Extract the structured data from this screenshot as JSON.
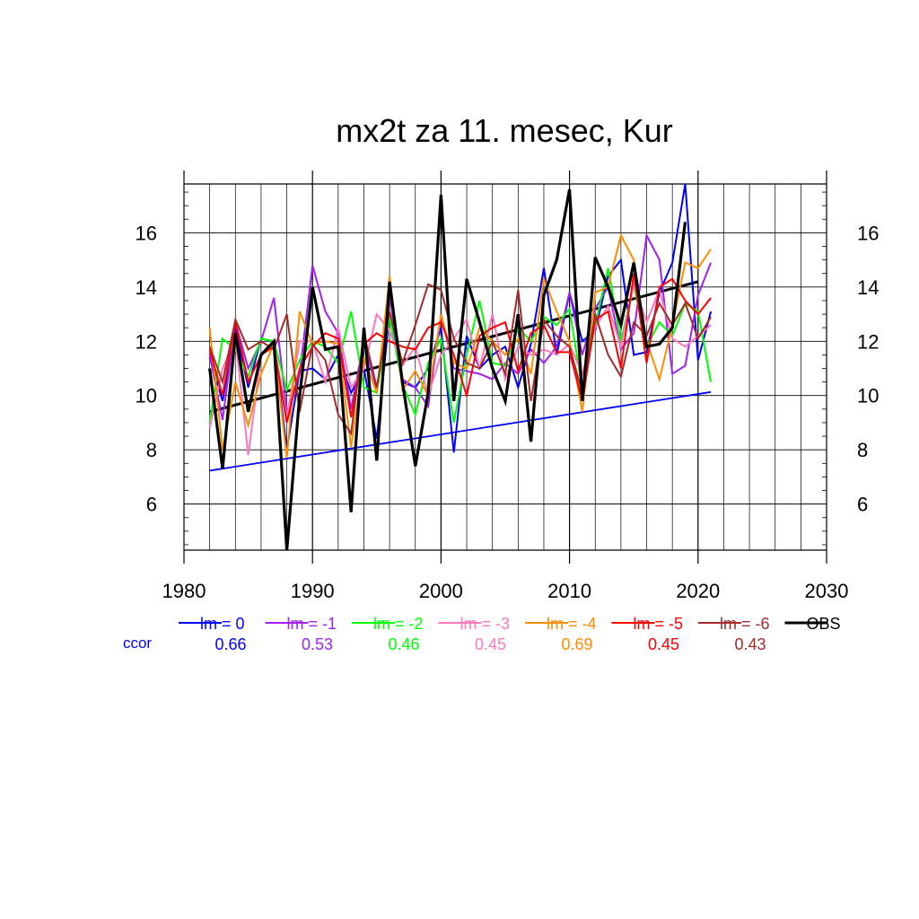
{
  "chart_data": {
    "type": "line",
    "title": "mx2t za 11. mesec, Kur",
    "xlabel": "",
    "ylabel": "",
    "xlim": [
      1980,
      2030
    ],
    "ylim": [
      4.3,
      17.8
    ],
    "x_ticks": [
      1980,
      1990,
      2000,
      2010,
      2020,
      2030
    ],
    "y_ticks": [
      6,
      8,
      10,
      12,
      14,
      16
    ],
    "grid": true,
    "legend_placement": "bottom",
    "ccor_label": "ccor",
    "x": [
      1982,
      1983,
      1984,
      1985,
      1986,
      1987,
      1988,
      1989,
      1990,
      1991,
      1992,
      1993,
      1994,
      1995,
      1996,
      1997,
      1998,
      1999,
      2000,
      2001,
      2002,
      2003,
      2004,
      2005,
      2006,
      2007,
      2008,
      2009,
      2010,
      2011,
      2012,
      2013,
      2014,
      2015,
      2016,
      2017,
      2018,
      2019,
      2020,
      2021
    ],
    "series": [
      {
        "name": "lm = 0",
        "color": "#0000ff",
        "ccor": "0.66",
        "values": [
          11.4,
          9.8,
          12.5,
          10.3,
          12.1,
          12.0,
          8.0,
          10.9,
          11.0,
          10.6,
          11.5,
          10.1,
          11.0,
          8.4,
          13.0,
          10.5,
          10.3,
          11.0,
          12.5,
          7.9,
          12.2,
          11.0,
          11.5,
          11.8,
          10.3,
          11.9,
          14.7,
          11.5,
          13.8,
          12.0,
          12.4,
          14.4,
          15.0,
          11.5,
          11.6,
          13.8,
          14.9,
          17.8,
          11.3,
          13.1
        ]
      },
      {
        "name": "lm = -1",
        "color": "#a020f0",
        "ccor": "0.53",
        "values": [
          11.5,
          9.1,
          12.7,
          11.0,
          12.0,
          13.6,
          9.4,
          10.8,
          14.8,
          13.1,
          12.3,
          9.5,
          12.0,
          10.2,
          13.7,
          10.6,
          10.3,
          9.6,
          13.0,
          11.0,
          10.9,
          10.8,
          10.6,
          11.2,
          10.8,
          11.7,
          11.2,
          11.8,
          13.8,
          11.5,
          13.2,
          14.0,
          11.7,
          12.3,
          15.9,
          15.0,
          10.8,
          11.1,
          13.7,
          14.9
        ]
      },
      {
        "name": "lm = -2",
        "color": "#00ff00",
        "ccor": "0.46",
        "values": [
          9.0,
          12.1,
          11.7,
          10.7,
          12.1,
          12.0,
          10.2,
          11.3,
          12.0,
          11.8,
          11.2,
          13.1,
          10.3,
          10.1,
          12.9,
          10.4,
          9.3,
          11.2,
          12.1,
          9.0,
          11.5,
          13.5,
          11.2,
          11.1,
          12.5,
          12.0,
          12.9,
          12.6,
          13.2,
          10.2,
          12.6,
          14.7,
          12.0,
          14.1,
          11.8,
          12.7,
          12.2,
          13.4,
          13.1,
          10.5
        ]
      },
      {
        "name": "lm = -3",
        "color": "#ff77bb",
        "ccor": "0.45",
        "values": [
          8.8,
          11.0,
          12.1,
          7.8,
          11.5,
          11.9,
          9.2,
          12.0,
          12.0,
          10.5,
          12.5,
          10.3,
          11.0,
          13.0,
          12.4,
          11.1,
          11.8,
          10.0,
          11.5,
          12.1,
          12.8,
          11.0,
          13.0,
          10.6,
          11.8,
          11.5,
          11.7,
          11.5,
          11.9,
          10.8,
          12.5,
          13.3,
          11.8,
          14.1,
          12.7,
          13.9,
          12.1,
          11.8,
          12.2,
          12.6
        ]
      },
      {
        "name": "lm = -4",
        "color": "#ff8c00",
        "ccor": "0.69",
        "values": [
          12.5,
          8.0,
          10.5,
          8.9,
          10.8,
          11.9,
          7.7,
          13.1,
          11.9,
          12.0,
          11.9,
          8.1,
          11.4,
          10.1,
          14.4,
          10.2,
          10.9,
          10.0,
          13.0,
          11.2,
          11.0,
          12.5,
          12.0,
          11.5,
          12.1,
          10.8,
          14.3,
          13.1,
          12.0,
          9.4,
          13.8,
          14.0,
          15.9,
          15.0,
          12.0,
          10.6,
          12.6,
          14.9,
          14.7,
          15.4
        ]
      },
      {
        "name": "lm = -5",
        "color": "#ff0000",
        "ccor": "0.45",
        "values": [
          11.7,
          10.0,
          12.7,
          10.5,
          11.5,
          11.8,
          9.0,
          11.0,
          11.8,
          12.3,
          12.1,
          9.2,
          11.9,
          12.3,
          12.0,
          11.8,
          11.7,
          12.5,
          12.7,
          11.5,
          10.0,
          12.2,
          12.5,
          12.7,
          10.9,
          12.3,
          12.6,
          11.6,
          11.6,
          9.8,
          12.8,
          13.1,
          11.0,
          14.5,
          11.2,
          14.0,
          14.3,
          13.5,
          13.0,
          13.6
        ]
      },
      {
        "name": "lm = -6",
        "color": "#a52a2a",
        "ccor": "0.43",
        "values": [
          11.8,
          10.5,
          12.8,
          11.7,
          12.0,
          11.7,
          13.0,
          9.4,
          11.9,
          11.3,
          9.3,
          8.6,
          12.3,
          10.3,
          13.1,
          11.2,
          12.6,
          14.1,
          13.9,
          12.1,
          11.2,
          11.0,
          12.0,
          10.8,
          13.9,
          9.8,
          12.8,
          12.2,
          11.8,
          10.1,
          13.0,
          11.5,
          10.7,
          12.7,
          12.2,
          13.4,
          12.6,
          13.4,
          12.1,
          12.9
        ]
      },
      {
        "name": "OBS",
        "color": "#000000",
        "ccor": "",
        "values": [
          11.0,
          7.3,
          12.3,
          9.4,
          11.5,
          12.0,
          4.3,
          10.0,
          14.0,
          11.7,
          11.8,
          5.7,
          12.5,
          7.6,
          14.2,
          10.5,
          7.4,
          10.1,
          17.4,
          9.8,
          14.3,
          12.7,
          11.0,
          9.8,
          13.0,
          8.3,
          13.7,
          15.0,
          17.6,
          9.8,
          15.1,
          14.0,
          12.6,
          14.9,
          11.8,
          11.9,
          12.5,
          16.4,
          null,
          null
        ]
      }
    ],
    "trend_lines": [
      {
        "color": "#0000ff",
        "x": [
          1982,
          2021
        ],
        "y": [
          7.23,
          10.13
        ]
      },
      {
        "color": "#000000",
        "x": [
          1982,
          2020
        ],
        "y": [
          9.4,
          14.2
        ]
      }
    ]
  }
}
